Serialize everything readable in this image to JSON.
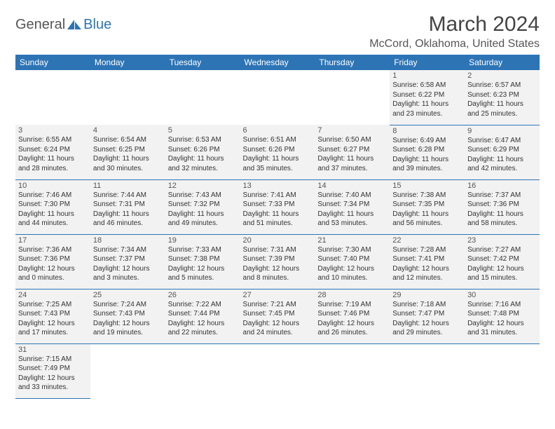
{
  "logo": {
    "text1": "General",
    "text2": "Blue"
  },
  "title": "March 2024",
  "location": "McCord, Oklahoma, United States",
  "colors": {
    "header_bg": "#2d74b5",
    "header_fg": "#ffffff",
    "cell_bg": "#f2f2f2",
    "border": "#2d74b5"
  },
  "day_headers": [
    "Sunday",
    "Monday",
    "Tuesday",
    "Wednesday",
    "Thursday",
    "Friday",
    "Saturday"
  ],
  "weeks": [
    [
      {
        "empty": true
      },
      {
        "empty": true
      },
      {
        "empty": true
      },
      {
        "empty": true
      },
      {
        "empty": true
      },
      {
        "num": "1",
        "sunrise": "Sunrise: 6:58 AM",
        "sunset": "Sunset: 6:22 PM",
        "daylight": "Daylight: 11 hours and 23 minutes."
      },
      {
        "num": "2",
        "sunrise": "Sunrise: 6:57 AM",
        "sunset": "Sunset: 6:23 PM",
        "daylight": "Daylight: 11 hours and 25 minutes."
      }
    ],
    [
      {
        "num": "3",
        "sunrise": "Sunrise: 6:55 AM",
        "sunset": "Sunset: 6:24 PM",
        "daylight": "Daylight: 11 hours and 28 minutes."
      },
      {
        "num": "4",
        "sunrise": "Sunrise: 6:54 AM",
        "sunset": "Sunset: 6:25 PM",
        "daylight": "Daylight: 11 hours and 30 minutes."
      },
      {
        "num": "5",
        "sunrise": "Sunrise: 6:53 AM",
        "sunset": "Sunset: 6:26 PM",
        "daylight": "Daylight: 11 hours and 32 minutes."
      },
      {
        "num": "6",
        "sunrise": "Sunrise: 6:51 AM",
        "sunset": "Sunset: 6:26 PM",
        "daylight": "Daylight: 11 hours and 35 minutes."
      },
      {
        "num": "7",
        "sunrise": "Sunrise: 6:50 AM",
        "sunset": "Sunset: 6:27 PM",
        "daylight": "Daylight: 11 hours and 37 minutes."
      },
      {
        "num": "8",
        "sunrise": "Sunrise: 6:49 AM",
        "sunset": "Sunset: 6:28 PM",
        "daylight": "Daylight: 11 hours and 39 minutes."
      },
      {
        "num": "9",
        "sunrise": "Sunrise: 6:47 AM",
        "sunset": "Sunset: 6:29 PM",
        "daylight": "Daylight: 11 hours and 42 minutes."
      }
    ],
    [
      {
        "num": "10",
        "sunrise": "Sunrise: 7:46 AM",
        "sunset": "Sunset: 7:30 PM",
        "daylight": "Daylight: 11 hours and 44 minutes."
      },
      {
        "num": "11",
        "sunrise": "Sunrise: 7:44 AM",
        "sunset": "Sunset: 7:31 PM",
        "daylight": "Daylight: 11 hours and 46 minutes."
      },
      {
        "num": "12",
        "sunrise": "Sunrise: 7:43 AM",
        "sunset": "Sunset: 7:32 PM",
        "daylight": "Daylight: 11 hours and 49 minutes."
      },
      {
        "num": "13",
        "sunrise": "Sunrise: 7:41 AM",
        "sunset": "Sunset: 7:33 PM",
        "daylight": "Daylight: 11 hours and 51 minutes."
      },
      {
        "num": "14",
        "sunrise": "Sunrise: 7:40 AM",
        "sunset": "Sunset: 7:34 PM",
        "daylight": "Daylight: 11 hours and 53 minutes."
      },
      {
        "num": "15",
        "sunrise": "Sunrise: 7:38 AM",
        "sunset": "Sunset: 7:35 PM",
        "daylight": "Daylight: 11 hours and 56 minutes."
      },
      {
        "num": "16",
        "sunrise": "Sunrise: 7:37 AM",
        "sunset": "Sunset: 7:36 PM",
        "daylight": "Daylight: 11 hours and 58 minutes."
      }
    ],
    [
      {
        "num": "17",
        "sunrise": "Sunrise: 7:36 AM",
        "sunset": "Sunset: 7:36 PM",
        "daylight": "Daylight: 12 hours and 0 minutes."
      },
      {
        "num": "18",
        "sunrise": "Sunrise: 7:34 AM",
        "sunset": "Sunset: 7:37 PM",
        "daylight": "Daylight: 12 hours and 3 minutes."
      },
      {
        "num": "19",
        "sunrise": "Sunrise: 7:33 AM",
        "sunset": "Sunset: 7:38 PM",
        "daylight": "Daylight: 12 hours and 5 minutes."
      },
      {
        "num": "20",
        "sunrise": "Sunrise: 7:31 AM",
        "sunset": "Sunset: 7:39 PM",
        "daylight": "Daylight: 12 hours and 8 minutes."
      },
      {
        "num": "21",
        "sunrise": "Sunrise: 7:30 AM",
        "sunset": "Sunset: 7:40 PM",
        "daylight": "Daylight: 12 hours and 10 minutes."
      },
      {
        "num": "22",
        "sunrise": "Sunrise: 7:28 AM",
        "sunset": "Sunset: 7:41 PM",
        "daylight": "Daylight: 12 hours and 12 minutes."
      },
      {
        "num": "23",
        "sunrise": "Sunrise: 7:27 AM",
        "sunset": "Sunset: 7:42 PM",
        "daylight": "Daylight: 12 hours and 15 minutes."
      }
    ],
    [
      {
        "num": "24",
        "sunrise": "Sunrise: 7:25 AM",
        "sunset": "Sunset: 7:43 PM",
        "daylight": "Daylight: 12 hours and 17 minutes."
      },
      {
        "num": "25",
        "sunrise": "Sunrise: 7:24 AM",
        "sunset": "Sunset: 7:43 PM",
        "daylight": "Daylight: 12 hours and 19 minutes."
      },
      {
        "num": "26",
        "sunrise": "Sunrise: 7:22 AM",
        "sunset": "Sunset: 7:44 PM",
        "daylight": "Daylight: 12 hours and 22 minutes."
      },
      {
        "num": "27",
        "sunrise": "Sunrise: 7:21 AM",
        "sunset": "Sunset: 7:45 PM",
        "daylight": "Daylight: 12 hours and 24 minutes."
      },
      {
        "num": "28",
        "sunrise": "Sunrise: 7:19 AM",
        "sunset": "Sunset: 7:46 PM",
        "daylight": "Daylight: 12 hours and 26 minutes."
      },
      {
        "num": "29",
        "sunrise": "Sunrise: 7:18 AM",
        "sunset": "Sunset: 7:47 PM",
        "daylight": "Daylight: 12 hours and 29 minutes."
      },
      {
        "num": "30",
        "sunrise": "Sunrise: 7:16 AM",
        "sunset": "Sunset: 7:48 PM",
        "daylight": "Daylight: 12 hours and 31 minutes."
      }
    ],
    [
      {
        "num": "31",
        "sunrise": "Sunrise: 7:15 AM",
        "sunset": "Sunset: 7:49 PM",
        "daylight": "Daylight: 12 hours and 33 minutes."
      },
      {
        "empty": true
      },
      {
        "empty": true
      },
      {
        "empty": true
      },
      {
        "empty": true
      },
      {
        "empty": true
      },
      {
        "empty": true
      }
    ]
  ]
}
